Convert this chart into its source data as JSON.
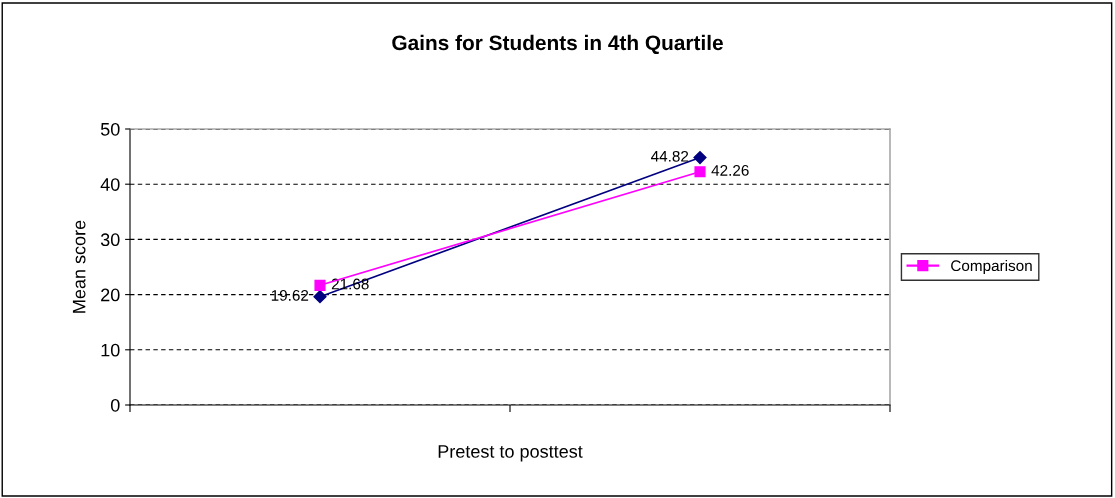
{
  "chart_data": {
    "type": "line",
    "title": "Gains for Students in 4th Quartile",
    "xlabel": "Pretest to posttest",
    "ylabel": "Mean score",
    "categories": [
      null,
      null
    ],
    "series": [
      {
        "color": "#000080",
        "marker": "diamond",
        "values": [
          19.62,
          44.82
        ]
      },
      {
        "name": "Comparison",
        "color": "#ff00ff",
        "marker": "square",
        "values": [
          21.68,
          42.26
        ]
      }
    ],
    "ylim": [
      0,
      50
    ],
    "yticks": [
      0,
      10,
      20,
      30,
      40,
      50
    ],
    "grid": "y",
    "legend": "right",
    "data_labels": true,
    "line_style": "solid"
  }
}
